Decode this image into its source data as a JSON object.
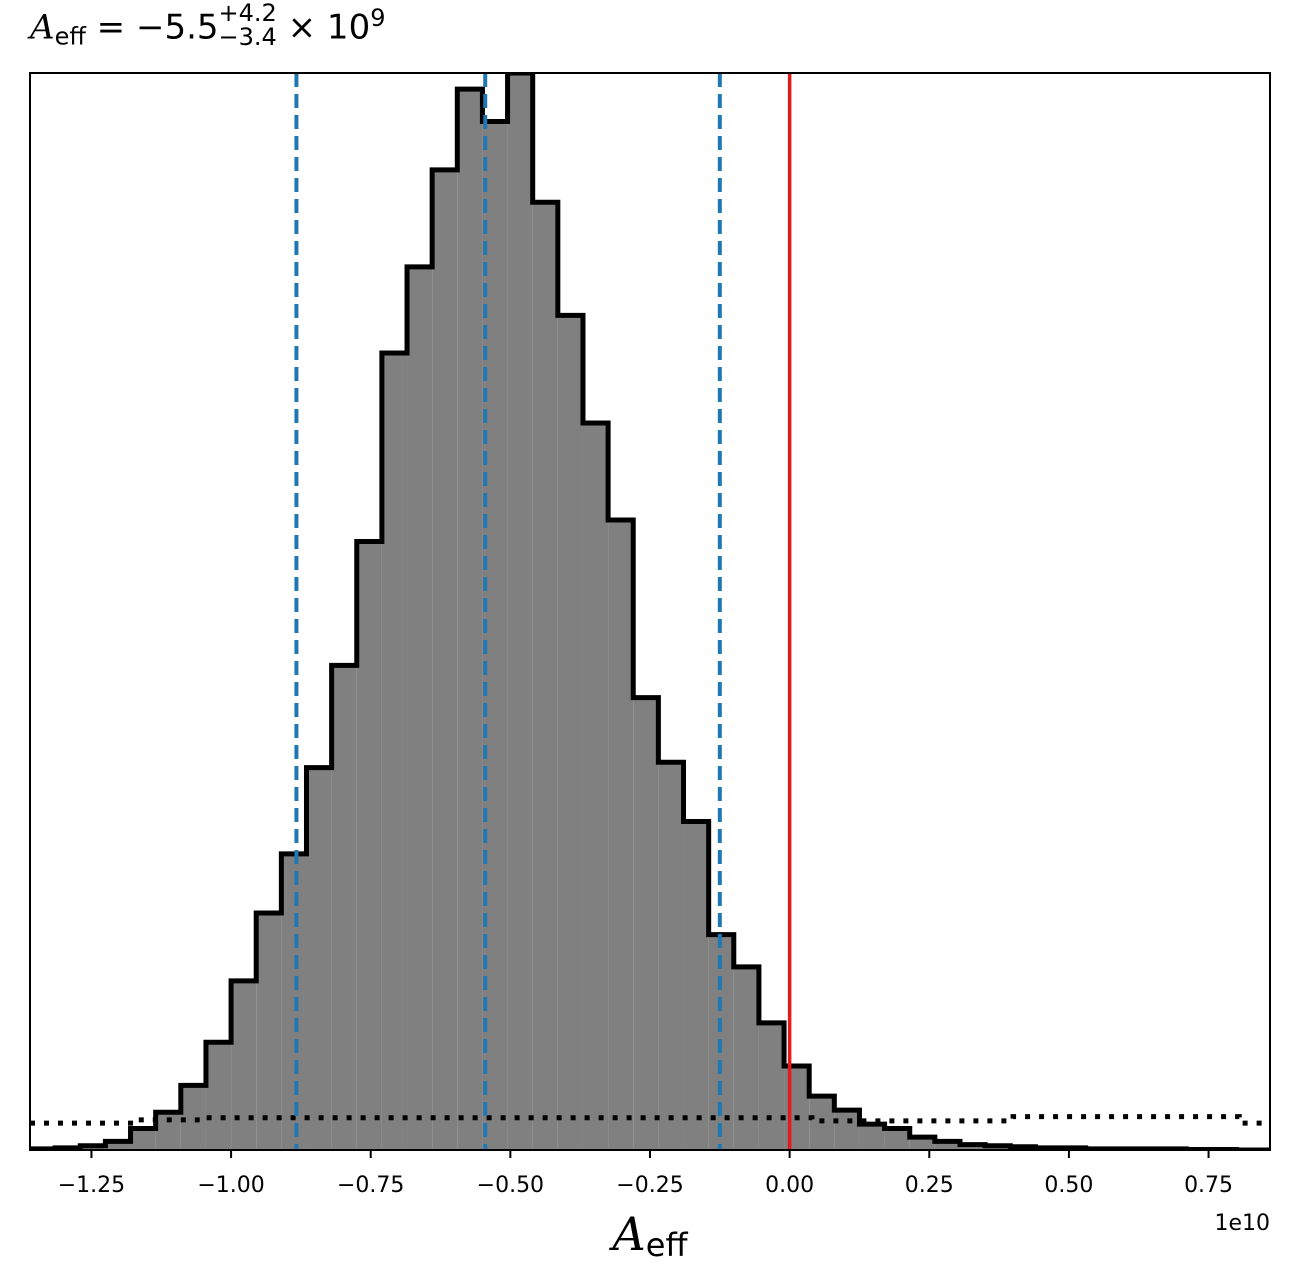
{
  "chart_data": {
    "type": "histogram",
    "title": {
      "symbol": "A",
      "symbol_sub": "eff",
      "text": " = −5.5",
      "sup": "+4.2",
      "sub": "−3.4",
      "suffix": " × 10",
      "exp": "9"
    },
    "xlabel": {
      "symbol": "A",
      "sub": "eff"
    },
    "x_offset_label": "1e10",
    "xlim": [
      -1.36,
      0.86
    ],
    "ylim": [
      0,
      1.0
    ],
    "x_ticks": [
      -1.25,
      -1.0,
      -0.75,
      -0.5,
      -0.25,
      0.0,
      0.25,
      0.5,
      0.75
    ],
    "x_tick_labels": [
      "−1.25",
      "−1.00",
      "−0.75",
      "−0.50",
      "−0.25",
      "0.00",
      "0.25",
      "0.50",
      "0.75"
    ],
    "bins": {
      "edges": [
        -1.36,
        -1.315,
        -1.27,
        -1.225,
        -1.18,
        -1.135,
        -1.09,
        -1.045,
        -1.0,
        -0.955,
        -0.91,
        -0.865,
        -0.82,
        -0.775,
        -0.73,
        -0.685,
        -0.64,
        -0.595,
        -0.55,
        -0.505,
        -0.46,
        -0.415,
        -0.37,
        -0.325,
        -0.28,
        -0.235,
        -0.19,
        -0.145,
        -0.1,
        -0.055,
        -0.01,
        0.035,
        0.08,
        0.125,
        0.17,
        0.215,
        0.26,
        0.305,
        0.35,
        0.395,
        0.44,
        0.485,
        0.53,
        0.575,
        0.62,
        0.665,
        0.71,
        0.755,
        0.8,
        0.86
      ],
      "heights": [
        0.001,
        0.002,
        0.004,
        0.008,
        0.02,
        0.035,
        0.06,
        0.1,
        0.157,
        0.22,
        0.275,
        0.355,
        0.45,
        0.565,
        0.74,
        0.82,
        0.91,
        0.985,
        0.955,
        1.0,
        0.88,
        0.775,
        0.675,
        0.585,
        0.42,
        0.36,
        0.305,
        0.2,
        0.17,
        0.118,
        0.078,
        0.05,
        0.037,
        0.024,
        0.02,
        0.012,
        0.008,
        0.005,
        0.004,
        0.003,
        0.002,
        0.002,
        0.001,
        0.001,
        0.001,
        0.001,
        0.0005,
        0.0005,
        0.0
      ]
    },
    "prior": {
      "style": "dotted",
      "edges": [
        -1.36,
        -1.18,
        -1.045,
        0.04,
        0.4,
        0.805,
        0.86
      ],
      "heights": [
        0.025,
        0.028,
        0.03,
        0.027,
        0.031,
        0.025
      ]
    },
    "quantile_lines": {
      "color": "#1f77b4",
      "style": "dashed",
      "x": [
        -0.883,
        -0.545,
        -0.125
      ]
    },
    "reference_line": {
      "color": "#e41a1c",
      "x": 0.0
    },
    "hist_fill": "#808080",
    "hist_edge": "#000000"
  }
}
